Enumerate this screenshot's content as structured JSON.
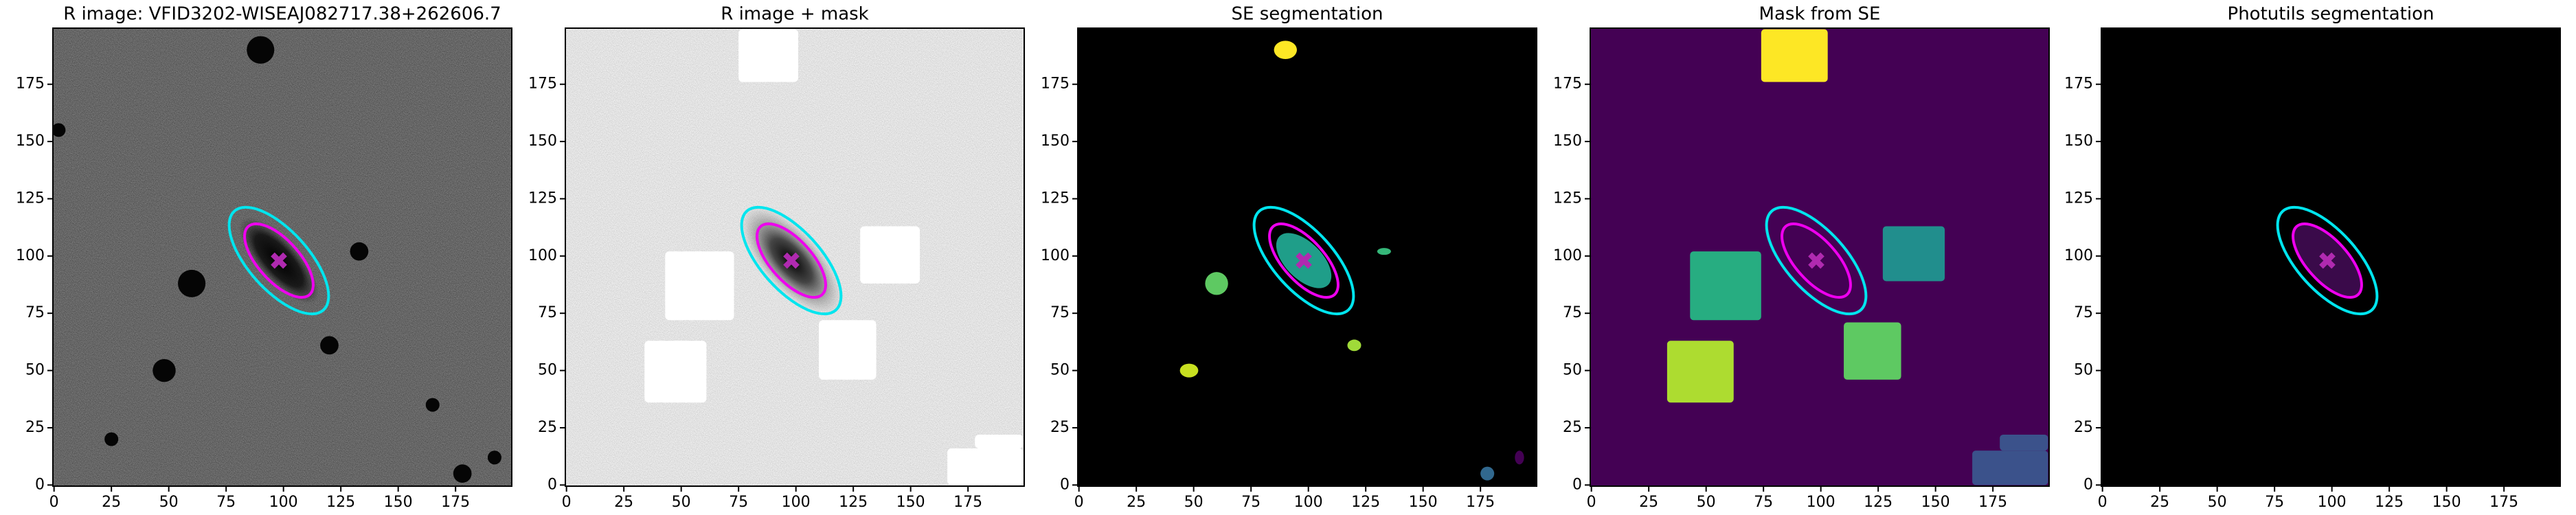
{
  "chart_data": [
    {
      "type": "image",
      "title": "R image: VFID3202-WISEAJ082717.38+262606.7",
      "xlim": [
        -0.5,
        199.5
      ],
      "ylim": [
        -0.5,
        199.5
      ],
      "xticks": [
        0,
        25,
        50,
        75,
        100,
        125,
        150,
        175
      ],
      "yticks": [
        0,
        25,
        50,
        75,
        100,
        125,
        150,
        175
      ]
    },
    {
      "type": "image",
      "title": "R image + mask",
      "xlim": [
        -0.5,
        199.5
      ],
      "ylim": [
        -0.5,
        199.5
      ],
      "xticks": [
        0,
        25,
        50,
        75,
        100,
        125,
        150,
        175
      ],
      "yticks": [
        0,
        25,
        50,
        75,
        100,
        125,
        150,
        175
      ]
    },
    {
      "type": "image",
      "title": "SE segmentation",
      "xlim": [
        -0.5,
        199.5
      ],
      "ylim": [
        -0.5,
        199.5
      ],
      "xticks": [
        0,
        25,
        50,
        75,
        100,
        125,
        150,
        175
      ],
      "yticks": [
        0,
        25,
        50,
        75,
        100,
        125,
        150,
        175
      ]
    },
    {
      "type": "image",
      "title": "Mask from SE",
      "xlim": [
        -0.5,
        199.5
      ],
      "ylim": [
        -0.5,
        199.5
      ],
      "xticks": [
        0,
        25,
        50,
        75,
        100,
        125,
        150,
        175
      ],
      "yticks": [
        0,
        25,
        50,
        75,
        100,
        125,
        150,
        175
      ]
    },
    {
      "type": "image",
      "title": "Photutils segmentation",
      "xlim": [
        -0.5,
        199.5
      ],
      "ylim": [
        -0.5,
        199.5
      ],
      "xticks": [
        0,
        25,
        50,
        75,
        100,
        125,
        150,
        175
      ],
      "yticks": [
        0,
        25,
        50,
        75,
        100,
        125,
        150,
        175
      ]
    }
  ]
}
